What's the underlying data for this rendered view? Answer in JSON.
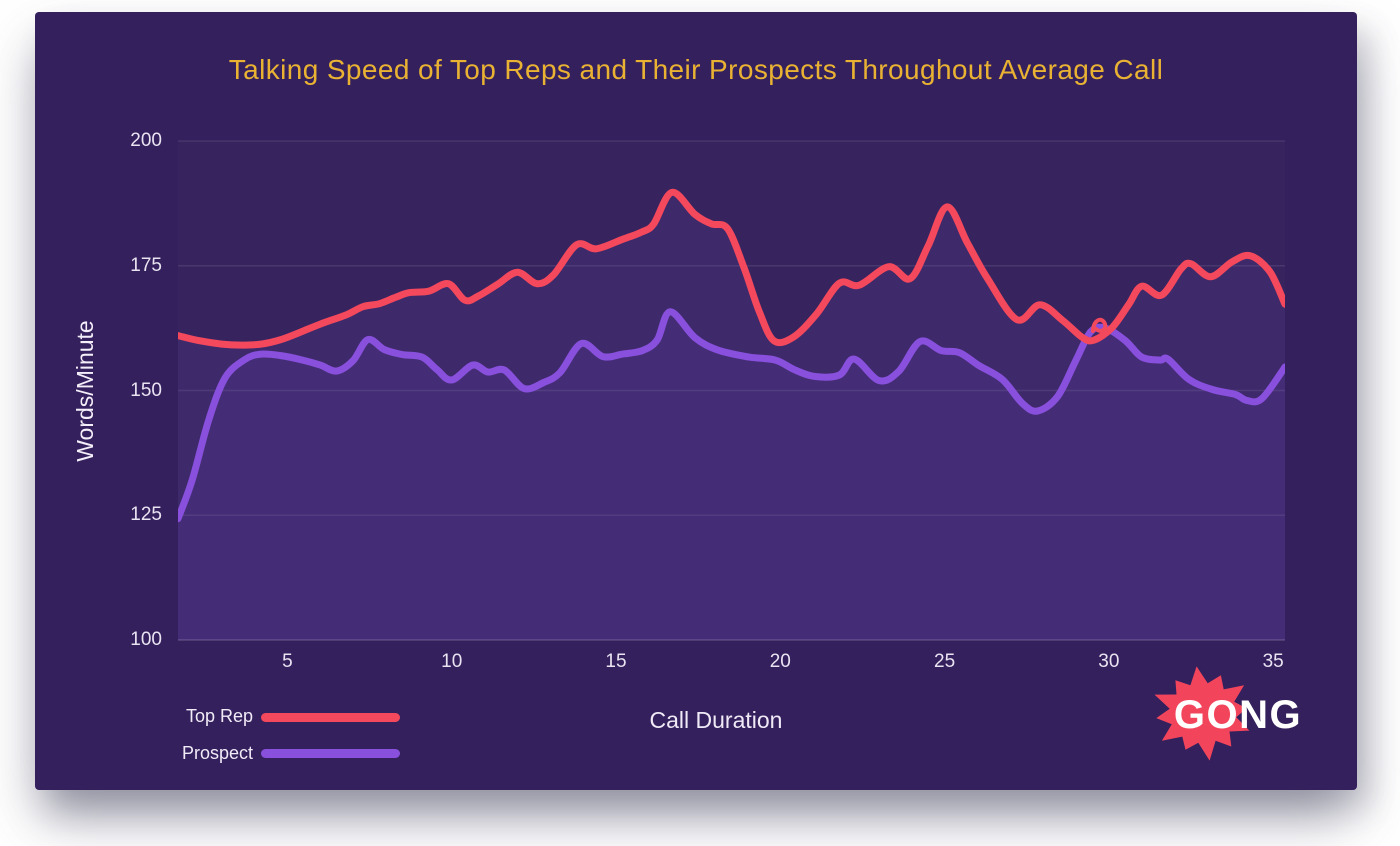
{
  "chart": {
    "title": "Talking Speed of Top Reps and Their Prospects Throughout Average Call",
    "y_axis": {
      "label": "Words/Minute",
      "ticks": [
        200,
        175,
        150,
        125,
        100
      ]
    },
    "x_axis": {
      "label": "Call Duration",
      "ticks": [
        5,
        10,
        15,
        20,
        25,
        30,
        35
      ]
    },
    "legend": {
      "items": [
        {
          "label": "Top Rep",
          "color": "#f4485c"
        },
        {
          "label": "Prospect",
          "color": "#8850dc"
        }
      ]
    },
    "logo": {
      "text": "GONG",
      "star_color": "#f2455c"
    }
  },
  "colors": {
    "page_bg": "#ffffff",
    "card_bg": "#34205c",
    "title": "#e9b233",
    "axis_text": "#e9e3f2",
    "grid": "rgba(255,255,255,0.09)",
    "baseline": "rgba(255,255,255,0.18)",
    "area_fill": "rgba(130,85,215,0.10)",
    "top_rep": "#f4485c",
    "prospect": "#8850dc"
  },
  "chart_data": {
    "type": "line",
    "title": "Talking Speed of Top Reps and Their Prospects Throughout Average Call",
    "xlabel": "Call Duration",
    "ylabel": "Words/Minute",
    "xlim": [
      1.67,
      35.36
    ],
    "ylim": [
      100,
      200
    ],
    "x_ticks": [
      5,
      10,
      15,
      20,
      25,
      30,
      35
    ],
    "y_ticks": [
      100,
      125,
      150,
      175,
      200
    ],
    "grid": "horizontal",
    "legend_position": "bottom-left",
    "smoothing": true,
    "series": [
      {
        "name": "Top Rep",
        "color": "#f4485c",
        "points": [
          [
            1.67,
            161
          ],
          [
            2.3,
            160
          ],
          [
            3.0,
            159.3
          ],
          [
            3.6,
            159.1
          ],
          [
            4.2,
            159.3
          ],
          [
            4.8,
            160.2
          ],
          [
            5.4,
            161.7
          ],
          [
            6.0,
            163.3
          ],
          [
            6.8,
            165.2
          ],
          [
            7.3,
            166.8
          ],
          [
            7.8,
            167.4
          ],
          [
            8.3,
            168.7
          ],
          [
            8.7,
            169.6
          ],
          [
            9.3,
            169.9
          ],
          [
            9.9,
            171.4
          ],
          [
            10.4,
            168.1
          ],
          [
            10.8,
            168.9
          ],
          [
            11.4,
            171.3
          ],
          [
            12.0,
            173.7
          ],
          [
            12.6,
            171.4
          ],
          [
            13.1,
            173.2
          ],
          [
            13.8,
            179.2
          ],
          [
            14.4,
            178.4
          ],
          [
            15.2,
            180.3
          ],
          [
            15.8,
            181.8
          ],
          [
            16.15,
            183.4
          ],
          [
            16.7,
            189.7
          ],
          [
            17.4,
            185.3
          ],
          [
            17.9,
            183.4
          ],
          [
            18.4,
            182.4
          ],
          [
            18.9,
            174.5
          ],
          [
            19.35,
            166
          ],
          [
            19.8,
            160
          ],
          [
            20.4,
            160.7
          ],
          [
            21.1,
            165.3
          ],
          [
            21.8,
            171.5
          ],
          [
            22.4,
            171.1
          ],
          [
            23.3,
            174.8
          ],
          [
            23.95,
            172.4
          ],
          [
            24.5,
            179
          ],
          [
            25.08,
            186.8
          ],
          [
            25.7,
            179.5
          ],
          [
            26.3,
            172.5
          ],
          [
            27.2,
            164.2
          ],
          [
            27.9,
            167.2
          ],
          [
            28.6,
            164
          ],
          [
            29.2,
            160.6
          ],
          [
            29.55,
            160.1
          ],
          [
            30.1,
            162.6
          ],
          [
            30.6,
            167.2
          ],
          [
            31.0,
            170.9
          ],
          [
            31.6,
            169.1
          ],
          [
            32.2,
            174.4
          ],
          [
            32.5,
            175.4
          ],
          [
            33.1,
            172.8
          ],
          [
            33.75,
            175.8
          ],
          [
            34.3,
            177
          ],
          [
            34.9,
            173.8
          ],
          [
            35.36,
            167.3
          ]
        ]
      },
      {
        "name": "Prospect",
        "color": "#8850dc",
        "points": [
          [
            1.67,
            124.3
          ],
          [
            2.1,
            132
          ],
          [
            2.6,
            144
          ],
          [
            3.1,
            152.5
          ],
          [
            3.7,
            156.2
          ],
          [
            4.2,
            157.3
          ],
          [
            4.8,
            157
          ],
          [
            5.4,
            156.2
          ],
          [
            6.0,
            155.1
          ],
          [
            6.5,
            153.9
          ],
          [
            7.0,
            156
          ],
          [
            7.45,
            160.2
          ],
          [
            7.95,
            158.2
          ],
          [
            8.5,
            157.2
          ],
          [
            9.1,
            156.7
          ],
          [
            9.55,
            154.2
          ],
          [
            10.0,
            152.1
          ],
          [
            10.64,
            155.1
          ],
          [
            11.1,
            153.7
          ],
          [
            11.6,
            154.1
          ],
          [
            12.2,
            150.4
          ],
          [
            12.8,
            151.6
          ],
          [
            13.3,
            153.6
          ],
          [
            13.94,
            159.4
          ],
          [
            14.6,
            156.8
          ],
          [
            15.2,
            157.3
          ],
          [
            15.8,
            158
          ],
          [
            16.25,
            160.1
          ],
          [
            16.65,
            165.8
          ],
          [
            17.4,
            160.6
          ],
          [
            18.1,
            158.1
          ],
          [
            19.05,
            156.7
          ],
          [
            19.85,
            156.1
          ],
          [
            20.45,
            154.1
          ],
          [
            21.06,
            152.8
          ],
          [
            21.8,
            153.1
          ],
          [
            22.25,
            156.3
          ],
          [
            23.0,
            152
          ],
          [
            23.6,
            153.8
          ],
          [
            24.25,
            159.8
          ],
          [
            24.9,
            158
          ],
          [
            25.45,
            157.6
          ],
          [
            26.05,
            155
          ],
          [
            26.76,
            152.2
          ],
          [
            27.37,
            147.4
          ],
          [
            27.83,
            145.9
          ],
          [
            28.44,
            148.8
          ],
          [
            29.0,
            156.1
          ],
          [
            29.45,
            161.8
          ],
          [
            29.9,
            162.5
          ],
          [
            30.5,
            160
          ],
          [
            31.0,
            156.7
          ],
          [
            31.56,
            156.1
          ],
          [
            31.8,
            156.3
          ],
          [
            32.44,
            152.2
          ],
          [
            33.15,
            150.2
          ],
          [
            33.85,
            149.2
          ],
          [
            34.2,
            148
          ],
          [
            34.66,
            148.4
          ],
          [
            35.36,
            154.7
          ]
        ]
      }
    ]
  }
}
